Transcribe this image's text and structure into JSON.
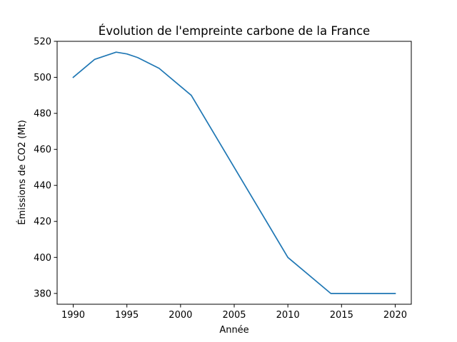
{
  "chart_data": {
    "type": "line",
    "title": "Évolution de l'empreinte carbone de la France",
    "xlabel": "Année",
    "ylabel": "Émissions de CO2 (Mt)",
    "xlim": [
      1988.5,
      2021.5
    ],
    "ylim": [
      374,
      520
    ],
    "xticks": [
      1990,
      1995,
      2000,
      2005,
      2010,
      2015,
      2020
    ],
    "yticks": [
      380,
      400,
      420,
      440,
      460,
      480,
      500,
      520
    ],
    "grid": false,
    "series": [
      {
        "color": "#1f77b4",
        "x": [
          1990,
          1992,
          1994,
          1995,
          1996,
          1998,
          2001,
          2005,
          2010,
          2014,
          2015,
          2020
        ],
        "y": [
          500,
          510,
          514,
          513,
          511,
          505,
          490,
          450,
          400,
          380,
          380,
          380
        ]
      }
    ]
  }
}
